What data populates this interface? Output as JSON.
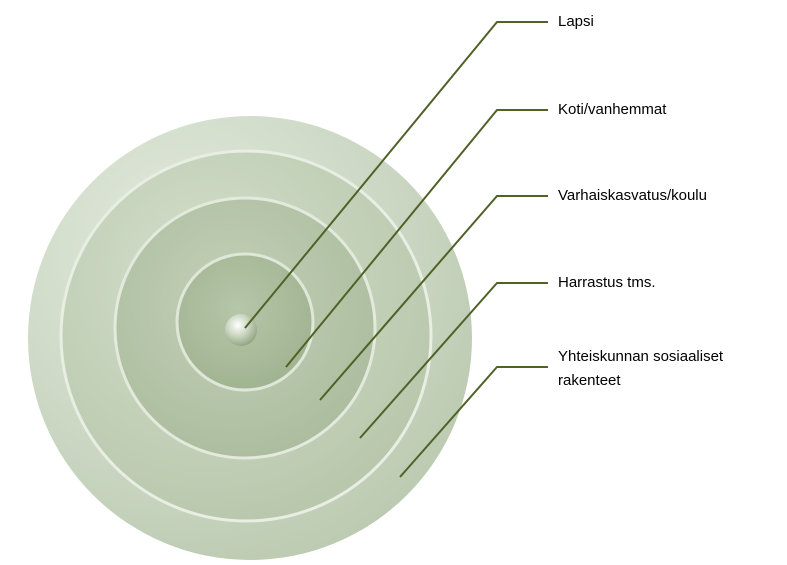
{
  "nodes": [
    {
      "lines": [
        "Lapsi"
      ]
    },
    {
      "lines": [
        "Koti/vanhemmat"
      ]
    },
    {
      "lines": [
        "Varhaiskasvatus/koulu"
      ]
    },
    {
      "lines": [
        "Harrastus tms."
      ]
    },
    {
      "lines": [
        "Yhteiskunnan sosiaaliset",
        "rakenteet"
      ]
    }
  ]
}
